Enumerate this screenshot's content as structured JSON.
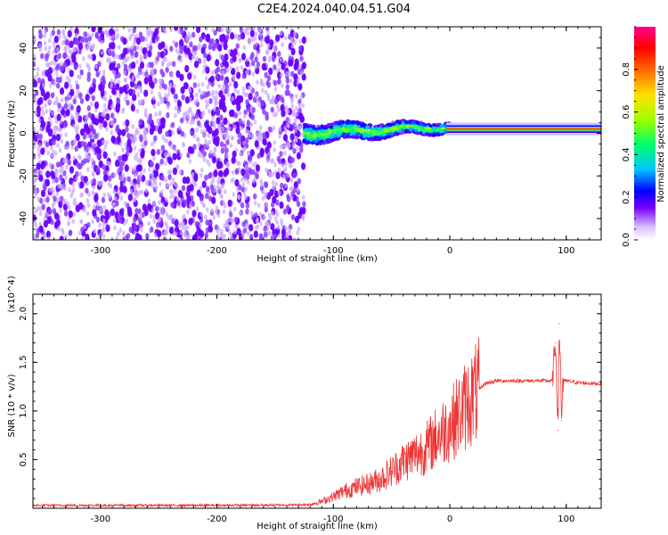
{
  "figure": {
    "title": "C2E4.2024.040.04.51.G04"
  },
  "chart_data": [
    {
      "type": "heatmap",
      "xlabel": "Height of straight line (km)",
      "ylabel": "Frequency (Hz)",
      "xlim": [
        -358,
        130
      ],
      "ylim": [
        -50,
        50
      ],
      "xticks": [
        -300,
        -200,
        -100,
        0,
        100
      ],
      "yticks": [
        -40,
        -20,
        0,
        20,
        40
      ],
      "colorbar": {
        "label": "Normalized spectral amplitude",
        "range": [
          0,
          1
        ],
        "ticks": [
          0.0,
          0.2,
          0.4,
          0.6,
          0.8
        ],
        "colors": [
          "#ffffff",
          "#c9a6ff",
          "#7a00ff",
          "#0000ff",
          "#00c6ff",
          "#00ff6a",
          "#9cff00",
          "#ffe100",
          "#ff6600",
          "#ff0000",
          "#ff0090"
        ]
      },
      "regions": [
        {
          "x_range": [
            -358,
            -125
          ],
          "y_range": [
            -50,
            50
          ],
          "amplitude": [
            0.1,
            0.3
          ]
        },
        {
          "x_range": [
            -125,
            0
          ],
          "y_center_start": 0,
          "y_center_end": 3,
          "amplitude": [
            0.3,
            0.7
          ]
        },
        {
          "x_range": [
            0,
            130
          ],
          "y_center": 2,
          "amplitude": [
            0.8,
            1.0
          ]
        }
      ]
    },
    {
      "type": "line",
      "xlabel": "Height of straight line (km)",
      "ylabel": "SNR (10 * v/v)",
      "y_multiplier": "(x10^4)",
      "xlim": [
        -358,
        130
      ],
      "ylim": [
        0,
        22000
      ],
      "xticks": [
        -300,
        -200,
        -100,
        0,
        100
      ],
      "yticks": [
        5000,
        10000,
        15000,
        20000
      ],
      "ytick_labels": [
        "0.5",
        "1.0",
        "1.5",
        "2.0"
      ],
      "series": [
        {
          "color": "#ee3333",
          "x": [
            -358,
            -300,
            -200,
            -130,
            -120,
            -110,
            -100,
            -90,
            -80,
            -70,
            -60,
            -50,
            -40,
            -30,
            -20,
            -10,
            0,
            10,
            20,
            30,
            40,
            60,
            80,
            88,
            91,
            93,
            94,
            95,
            96,
            97,
            100,
            110,
            130
          ],
          "y": [
            300,
            300,
            300,
            350,
            400,
            700,
            1200,
            1800,
            2200,
            2500,
            3000,
            3800,
            4800,
            5500,
            6200,
            7500,
            8500,
            10000,
            11500,
            12800,
            13100,
            13100,
            13100,
            13100,
            17000,
            8000,
            19000,
            15000,
            9000,
            13000,
            13100,
            12900,
            12800
          ]
        }
      ]
    }
  ]
}
